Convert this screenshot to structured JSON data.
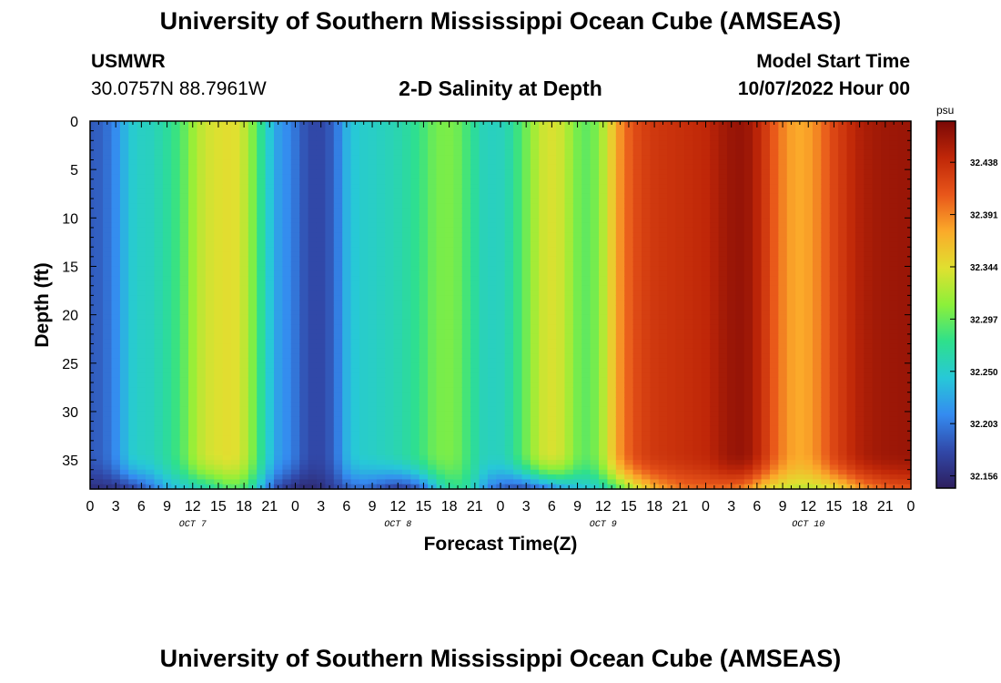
{
  "header": {
    "title": "University of Southern Mississippi Ocean Cube (AMSEAS)",
    "station": "USMWR",
    "coordinates": "30.0757N  88.7961W",
    "plot_title": "2-D Salinity at Depth",
    "model_start_label": "Model Start Time",
    "model_start_value": "10/07/2022 Hour 00"
  },
  "footer": {
    "title": "University of Southern Mississippi Ocean Cube (AMSEAS)"
  },
  "chart_data": {
    "type": "heatmap",
    "title": "2-D Salinity at Depth",
    "xlabel": "Forecast Time(Z)",
    "ylabel": "Depth (ft)",
    "x_unit": "hours since 10/07/2022 Hour 00",
    "xlim": [
      0,
      96
    ],
    "ylim": [
      0,
      38
    ],
    "y_inverted": true,
    "x_ticks": [
      0,
      3,
      6,
      9,
      12,
      15,
      18,
      21,
      24,
      27,
      30,
      33,
      36,
      39,
      42,
      45,
      48,
      51,
      54,
      57,
      60,
      63,
      66,
      69,
      72,
      75,
      78,
      81,
      84,
      87,
      90,
      93,
      96
    ],
    "x_tick_labels": [
      "0",
      "3",
      "6",
      "9",
      "12",
      "15",
      "18",
      "21",
      "0",
      "3",
      "6",
      "9",
      "12",
      "15",
      "18",
      "21",
      "0",
      "3",
      "6",
      "9",
      "12",
      "15",
      "18",
      "21",
      "0",
      "3",
      "6",
      "9",
      "12",
      "15",
      "18",
      "21",
      "0"
    ],
    "day_labels": [
      {
        "label": "OCT 7",
        "x": 12
      },
      {
        "label": "OCT 8",
        "x": 36
      },
      {
        "label": "OCT 9",
        "x": 60
      },
      {
        "label": "OCT 10",
        "x": 84
      }
    ],
    "y_ticks": [
      0,
      5,
      10,
      15,
      20,
      25,
      30,
      35
    ],
    "y_tick_labels": [
      "0",
      "5",
      "10",
      "15",
      "20",
      "25",
      "30",
      "35"
    ],
    "colorbar": {
      "unit": "psu",
      "min": 32.145,
      "max": 32.475,
      "ticks": [
        32.156,
        32.203,
        32.25,
        32.297,
        32.344,
        32.391,
        32.438
      ],
      "tick_labels": [
        "32.156",
        "32.203",
        "32.250",
        "32.297",
        "32.344",
        "32.391",
        "32.438"
      ],
      "colors": [
        "#2d1e5e",
        "#3148a8",
        "#348bf0",
        "#27c8d8",
        "#2ee08c",
        "#8cf03a",
        "#e0e030",
        "#fbaa2a",
        "#e8561a",
        "#c02708",
        "#7a0806"
      ]
    },
    "surface_profile": {
      "hour": [
        0,
        1,
        2,
        3,
        4,
        5,
        6,
        7,
        8,
        9,
        10,
        11,
        12,
        13,
        14,
        15,
        16,
        17,
        18,
        19,
        20,
        21,
        22,
        23,
        24,
        25,
        26,
        27,
        28,
        29,
        30,
        31,
        32,
        33,
        34,
        35,
        36,
        37,
        38,
        39,
        40,
        41,
        42,
        43,
        44,
        45,
        46,
        47,
        48,
        49,
        50,
        51,
        52,
        53,
        54,
        55,
        56,
        57,
        58,
        59,
        60,
        61,
        62,
        63,
        64,
        65,
        66,
        67,
        68,
        69,
        70,
        71,
        72,
        73,
        74,
        75,
        76,
        77,
        78,
        79,
        80,
        81,
        82,
        83,
        84,
        85,
        86,
        87,
        88,
        89,
        90,
        91,
        92,
        93,
        94,
        95,
        96
      ],
      "salinity": [
        32.188,
        32.19,
        32.198,
        32.212,
        32.232,
        32.248,
        32.253,
        32.255,
        32.262,
        32.27,
        32.281,
        32.295,
        32.315,
        32.33,
        32.338,
        32.342,
        32.345,
        32.343,
        32.33,
        32.305,
        32.275,
        32.245,
        32.222,
        32.212,
        32.2,
        32.185,
        32.178,
        32.178,
        32.186,
        32.205,
        32.232,
        32.245,
        32.25,
        32.252,
        32.255,
        32.258,
        32.262,
        32.268,
        32.275,
        32.285,
        32.297,
        32.303,
        32.304,
        32.299,
        32.285,
        32.27,
        32.258,
        32.255,
        32.256,
        32.265,
        32.282,
        32.3,
        32.32,
        32.335,
        32.34,
        32.335,
        32.32,
        32.302,
        32.295,
        32.302,
        32.325,
        32.355,
        32.385,
        32.405,
        32.418,
        32.425,
        32.43,
        32.432,
        32.434,
        32.436,
        32.438,
        32.44,
        32.442,
        32.448,
        32.455,
        32.46,
        32.462,
        32.458,
        32.445,
        32.428,
        32.408,
        32.392,
        32.38,
        32.376,
        32.38,
        32.39,
        32.405,
        32.42,
        32.43,
        32.44,
        32.448,
        32.453,
        32.456,
        32.458,
        32.459,
        32.46,
        32.46
      ]
    },
    "bottom_layer": {
      "from_depth": 34,
      "to_depth": 38,
      "near_bottom_salinity": [
        32.16,
        32.16,
        32.162,
        32.165,
        32.17,
        32.178,
        32.188,
        32.2,
        32.215,
        32.23,
        32.24,
        32.248,
        32.255,
        32.262,
        32.27,
        32.28,
        32.29,
        32.292,
        32.285,
        32.265,
        32.235,
        32.205,
        32.18,
        32.168,
        32.16,
        32.156,
        32.156,
        32.16,
        32.168,
        32.178,
        32.188,
        32.195,
        32.196,
        32.192,
        32.185,
        32.178,
        32.175,
        32.178,
        32.188,
        32.205,
        32.23,
        32.255,
        32.27,
        32.275,
        32.268,
        32.25,
        32.225,
        32.205,
        32.195,
        32.188,
        32.186,
        32.19,
        32.198,
        32.208,
        32.218,
        32.228,
        32.235,
        32.24,
        32.245,
        32.25,
        32.262,
        32.28,
        32.3,
        32.322,
        32.342,
        32.358,
        32.372,
        32.382,
        32.39,
        32.396,
        32.4,
        32.402,
        32.403,
        32.403,
        32.402,
        32.4,
        32.396,
        32.385,
        32.37,
        32.355,
        32.345,
        32.338,
        32.334,
        32.332,
        32.332,
        32.335,
        32.34,
        32.348,
        32.358,
        32.37,
        32.382,
        32.392,
        32.4,
        32.406,
        32.41,
        32.412,
        32.413
      ]
    }
  }
}
